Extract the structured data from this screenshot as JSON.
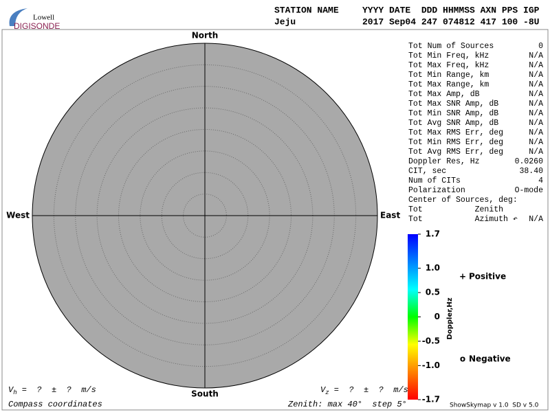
{
  "header": {
    "logo_top": "Lowell",
    "logo_bottom": "DIGISONDE",
    "station_label": "STATION NAME",
    "columns": "YYYY DATE  DDD HHMMSS AXN PPS IGP",
    "station": "Jeju",
    "values": "2017 Sep04 247 074812 417 100 -8U"
  },
  "stats": {
    "rows": [
      {
        "label": "Tot Num of Sources",
        "value": "0",
        "color": "#a8a8a8"
      },
      {
        "label": "Tot Min Freq, kHz",
        "value": "N/A",
        "color": "#a8a8a8"
      },
      {
        "label": "Tot Max Freq, kHz",
        "value": "N/A",
        "color": "#a8a8a8"
      },
      {
        "label": "Tot Min Range, km",
        "value": "N/A",
        "color": "#a8a8a8"
      },
      {
        "label": "Tot Max Range, km",
        "value": "N/A",
        "color": "#a8a8a8"
      },
      {
        "label": "Tot Max Amp, dB",
        "value": "N/A",
        "color": "#a8a8a8"
      },
      {
        "label": "Tot Max SNR Amp, dB",
        "value": "N/A",
        "color": "#a8a8a8"
      },
      {
        "label": "Tot Min SNR Amp, dB",
        "value": "N/A",
        "color": "#a8a8a8"
      },
      {
        "label": "Tot Avg SNR Amp, dB",
        "value": "N/A",
        "color": "#a8a8a8"
      },
      {
        "label": "Tot Max RMS Err, deg",
        "value": "N/A",
        "color": "#a8a8a8"
      },
      {
        "label": "Tot Min RMS Err, deg",
        "value": "N/A",
        "color": "#a8a8a8"
      },
      {
        "label": "Tot Avg RMS Err, deg",
        "value": "N/A",
        "color": "#a8a8a8"
      },
      {
        "label": "Doppler Res, Hz",
        "value": "0.0260",
        "color": "#000000"
      },
      {
        "label": "CIT, sec",
        "value": "38.40",
        "color": "#000000"
      },
      {
        "label": "Num of CITs",
        "value": "4",
        "color": "#000000"
      },
      {
        "label": "Polarization",
        "value": "O-mode",
        "color": "#000000"
      },
      {
        "label": "Center of Sources, deg:"
      },
      {
        "label": "Tot           Zenith",
        "value": "",
        "color": "#a8a8a8"
      },
      {
        "label": "Tot           Azimuth ↶",
        "value": "N/A",
        "color": "#a8a8a8"
      }
    ]
  },
  "chart_data": {
    "type": "skymap",
    "north": "North",
    "south": "South",
    "east": "East",
    "west": "West",
    "fill": "#a9a9a9",
    "rlim": [
      0,
      40
    ],
    "rticks": [
      5,
      10,
      15,
      20,
      25,
      30,
      35
    ],
    "zenith_note": "Zenith: max 40°  step 5°",
    "coordinates": "Compass coordinates",
    "colorbar": {
      "label": "Doppler,Hz",
      "lim": [
        -1.7,
        1.7
      ],
      "ticks": [
        -1.7,
        {
          "value": -1,
          "label": "-1.0"
        },
        -0.5,
        0,
        0.5,
        {
          "value": 1,
          "label": "1.0"
        },
        1.7
      ],
      "colors": [
        "#ff0000",
        "#ff8000",
        "#ffff00",
        "#00ff00",
        "#00ffff",
        "#0080ff",
        "#0000ff"
      ]
    },
    "legend": [
      {
        "marker": "+",
        "name": "Positive",
        "color": "#0000cc"
      },
      {
        "marker": "o",
        "name": "Negative",
        "color": "#cc0000"
      }
    ],
    "vh": {
      "symbol": "V",
      "sub": "h",
      "text": " =  ?  ±  ?  m/s"
    },
    "vz": {
      "symbol": "V",
      "sub": "z",
      "text": " =  ?  ±  ?  m/s"
    },
    "version": "ShowSkymap v 1.0  SD v 5.0"
  }
}
